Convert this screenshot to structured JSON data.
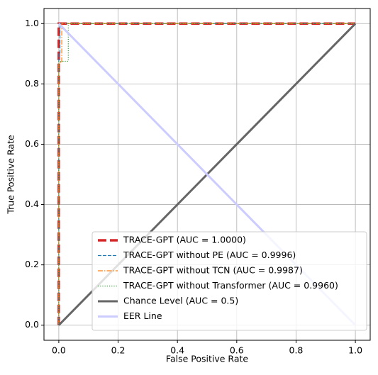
{
  "chart_data": {
    "type": "line",
    "xlabel": "False Positive Rate",
    "ylabel": "True Positive Rate",
    "xlim": [
      -0.05,
      1.05
    ],
    "ylim": [
      -0.05,
      1.05
    ],
    "xticks": [
      {
        "value": 0,
        "label": "0.0"
      },
      0.2,
      0.4,
      0.6,
      0.8,
      {
        "value": 1,
        "label": "1.0"
      }
    ],
    "yticks": [
      {
        "value": 0,
        "label": "0.0"
      },
      0.2,
      0.4,
      0.6,
      0.8,
      {
        "value": 1,
        "label": "1.0"
      }
    ],
    "grid": true,
    "legend": "lower right",
    "series": [
      {
        "name": "TRACE-GPT (AUC = 1.0000)",
        "color": "#d62728",
        "style": "dashed",
        "x": [
          0,
          0,
          1
        ],
        "values": [
          0,
          1,
          1
        ]
      },
      {
        "name": "TRACE-GPT without PE (AUC = 0.9996)",
        "color": "#1f77b4",
        "style": "dashed",
        "x": [
          0,
          0,
          0.004,
          0.004,
          1
        ],
        "values": [
          0,
          0.9,
          0.9,
          1,
          1
        ]
      },
      {
        "name": "TRACE-GPT without TCN (AUC = 0.9987)",
        "color": "#ff7f0e",
        "style": "dashdot",
        "x": [
          0,
          0,
          0.01,
          0.01,
          1
        ],
        "values": [
          0,
          0.87,
          0.87,
          1,
          1
        ]
      },
      {
        "name": "TRACE-GPT without Transformer (AUC = 0.9960)",
        "color": "#2ca02c",
        "style": "dotted",
        "x": [
          0,
          0,
          0.032,
          0.032,
          1
        ],
        "values": [
          0,
          0.875,
          0.875,
          1,
          1
        ]
      },
      {
        "name": "Chance Level (AUC = 0.5)",
        "color": "#666666",
        "style": "solid",
        "x": [
          0,
          1
        ],
        "values": [
          0,
          1
        ]
      },
      {
        "name": "EER Line",
        "color": "#ccccff",
        "style": "solid",
        "x": [
          0,
          1
        ],
        "values": [
          1,
          0
        ]
      }
    ]
  }
}
